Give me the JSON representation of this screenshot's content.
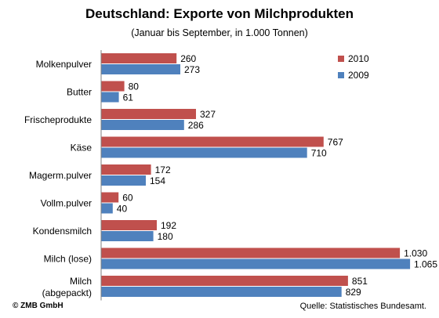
{
  "chart_data": {
    "type": "bar",
    "orientation": "horizontal",
    "title": "Deutschland: Exporte von Milchprodukten",
    "subtitle": "(Januar bis September, in 1.000 Tonnen)",
    "categories": [
      "Molkenpulver",
      "Butter",
      "Frischeprodukte",
      "Käse",
      "Magerm.pulver",
      "Vollm.pulver",
      "Kondensmilch",
      "Milch (lose)",
      "Milch (abgepackt)"
    ],
    "category_lines": [
      [
        "Molkenpulver"
      ],
      [
        "Butter"
      ],
      [
        "Frischeprodukte"
      ],
      [
        "Käse"
      ],
      [
        "Magerm.pulver"
      ],
      [
        "Vollm.pulver"
      ],
      [
        "Kondensmilch"
      ],
      [
        "Milch (lose)"
      ],
      [
        "Milch",
        "(abgepackt)"
      ]
    ],
    "series": [
      {
        "name": "2010",
        "color": "#c0504d",
        "values": [
          260,
          80,
          327,
          767,
          172,
          60,
          192,
          1030,
          851
        ],
        "labels": [
          "260",
          "80",
          "327",
          "767",
          "172",
          "60",
          "192",
          "1.030",
          "851"
        ]
      },
      {
        "name": "2009",
        "color": "#4f81bd",
        "values": [
          273,
          61,
          286,
          710,
          154,
          40,
          180,
          1065,
          829
        ],
        "labels": [
          "273",
          "61",
          "286",
          "710",
          "154",
          "40",
          "180",
          "1.065",
          "829"
        ]
      }
    ],
    "legend_position": "top-right",
    "xlim": [
      0,
      1100
    ],
    "grid": false
  },
  "footer": {
    "source": "Quelle: Statistisches Bundesamt.",
    "copyright": "© ZMB GmbH"
  }
}
